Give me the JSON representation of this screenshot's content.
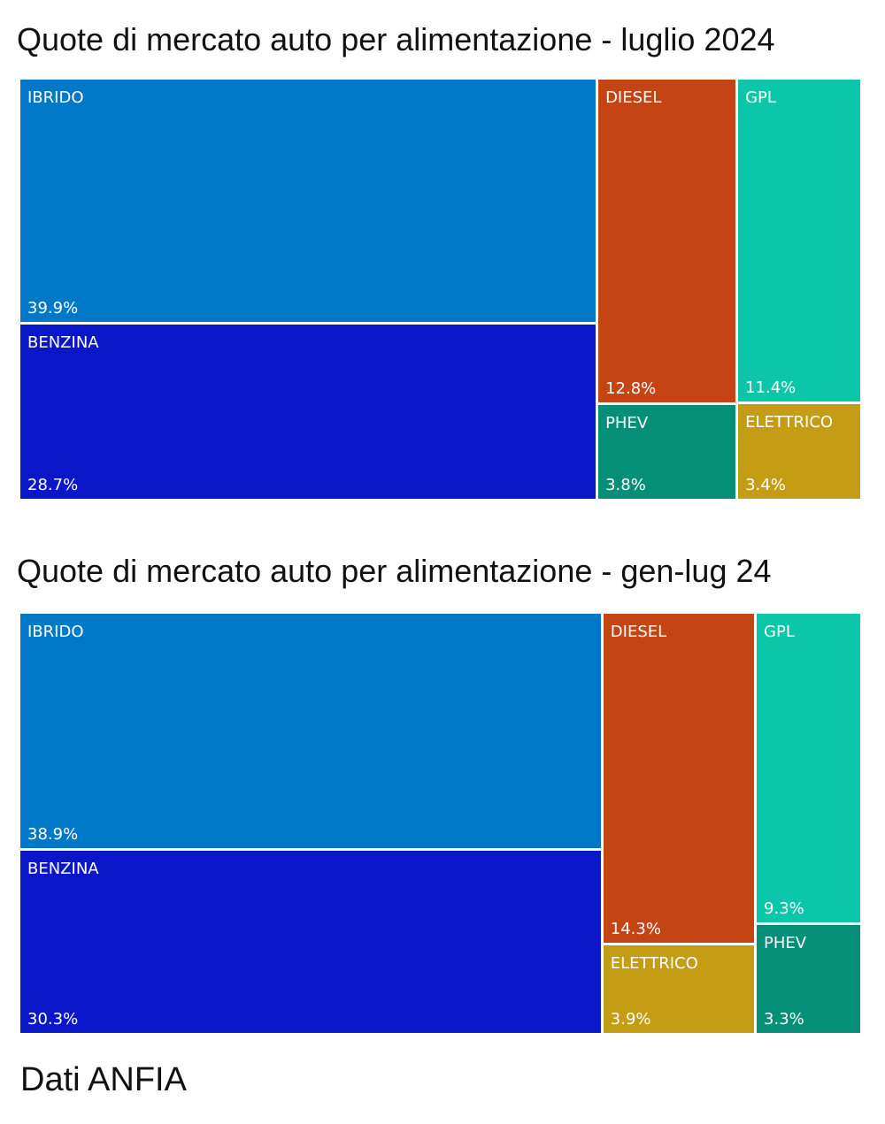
{
  "chart_data": [
    {
      "type": "treemap",
      "title": "Quote di mercato auto per alimentazione - luglio 2024",
      "unit": "%",
      "items": [
        {
          "name": "IBRIDO",
          "value": 39.9,
          "label": "39.9%",
          "color": "#0078C8"
        },
        {
          "name": "BENZINA",
          "value": 28.7,
          "label": "28.7%",
          "color": "#0A17C8"
        },
        {
          "name": "DIESEL",
          "value": 12.8,
          "label": "12.8%",
          "color": "#C44414"
        },
        {
          "name": "GPL",
          "value": 11.4,
          "label": "11.4%",
          "color": "#0CC6AA"
        },
        {
          "name": "PHEV",
          "value": 3.8,
          "label": "3.8%",
          "color": "#058E78"
        },
        {
          "name": "ELETTRICO",
          "value": 3.4,
          "label": "3.4%",
          "color": "#C49D14"
        }
      ]
    },
    {
      "type": "treemap",
      "title": "Quote di mercato auto per alimentazione - gen-lug 24",
      "unit": "%",
      "items": [
        {
          "name": "IBRIDO",
          "value": 38.9,
          "label": "38.9%",
          "color": "#0078C8"
        },
        {
          "name": "BENZINA",
          "value": 30.3,
          "label": "30.3%",
          "color": "#0A17C8"
        },
        {
          "name": "DIESEL",
          "value": 14.3,
          "label": "14.3%",
          "color": "#C44414"
        },
        {
          "name": "GPL",
          "value": 9.3,
          "label": "9.3%",
          "color": "#0CC6AA"
        },
        {
          "name": "ELETTRICO",
          "value": 3.9,
          "label": "3.9%",
          "color": "#C49D14"
        },
        {
          "name": "PHEV",
          "value": 3.3,
          "label": "3.3%",
          "color": "#058E78"
        }
      ]
    }
  ],
  "source": "Dati ANFIA"
}
